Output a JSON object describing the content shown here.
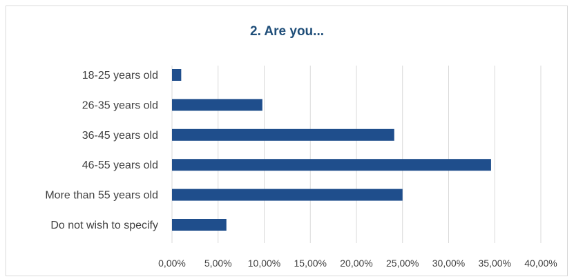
{
  "chart_data": {
    "type": "bar",
    "orientation": "horizontal",
    "title": "2. Are you...",
    "categories": [
      "18-25 years old",
      "26-35 years old",
      "36-45 years old",
      "46-55 years old",
      "More than 55 years old",
      "Do not wish to specify"
    ],
    "values": [
      1.0,
      9.8,
      24.1,
      34.6,
      25.0,
      5.9
    ],
    "unit": "%",
    "xlim": [
      0,
      40
    ],
    "x_ticks": [
      "0,00%",
      "5,00%",
      "10,00%",
      "15,00%",
      "20,00%",
      "25,00%",
      "30,00%",
      "35,00%",
      "40,00%"
    ],
    "grid": "vertical",
    "bar_color": "#1f4e8c",
    "grid_color": "#d9d9d9"
  }
}
